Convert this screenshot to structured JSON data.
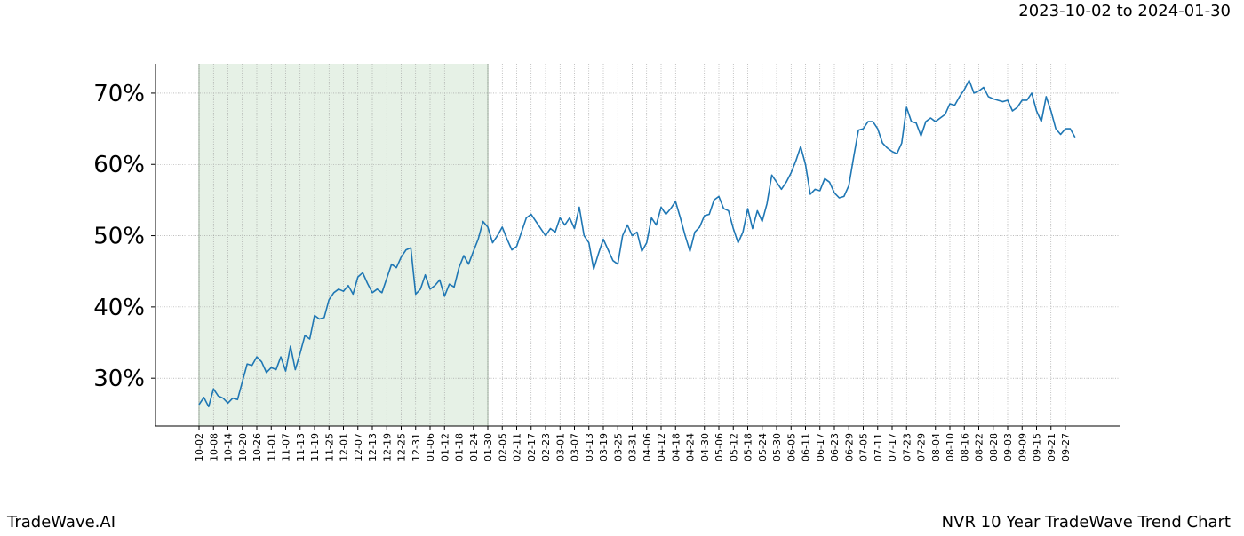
{
  "header": {
    "date_range": "2023-10-02 to 2024-01-30"
  },
  "footer": {
    "brand": "TradeWave.AI",
    "chart_name": "NVR 10 Year TradeWave Trend Chart"
  },
  "chart_data": {
    "type": "line",
    "categories": [
      "10-02",
      null,
      null,
      "10-08",
      null,
      null,
      "10-14",
      null,
      null,
      "10-20",
      null,
      null,
      "10-26",
      null,
      null,
      "11-01",
      null,
      null,
      "11-07",
      null,
      null,
      "11-13",
      null,
      null,
      "11-19",
      null,
      null,
      "11-25",
      null,
      null,
      "12-01",
      null,
      null,
      "12-07",
      null,
      null,
      "12-13",
      null,
      null,
      "12-19",
      null,
      null,
      "12-25",
      null,
      null,
      "12-31",
      null,
      null,
      "01-06",
      null,
      null,
      "01-12",
      null,
      null,
      "01-18",
      null,
      null,
      "01-24",
      null,
      null,
      "01-30",
      null,
      null,
      "02-05",
      null,
      null,
      "02-11",
      null,
      null,
      "02-17",
      null,
      null,
      "02-23",
      null,
      null,
      "03-01",
      null,
      null,
      "03-07",
      null,
      null,
      "03-13",
      null,
      null,
      "03-19",
      null,
      null,
      "03-25",
      null,
      null,
      "03-31",
      null,
      null,
      "04-06",
      null,
      null,
      "04-12",
      null,
      null,
      "04-18",
      null,
      null,
      "04-24",
      null,
      null,
      "04-30",
      null,
      null,
      "05-06",
      null,
      null,
      "05-12",
      null,
      null,
      "05-18",
      null,
      null,
      "05-24",
      null,
      null,
      "05-30",
      null,
      null,
      "06-05",
      null,
      null,
      "06-11",
      null,
      null,
      "06-17",
      null,
      null,
      "06-23",
      null,
      null,
      "06-29",
      null,
      null,
      "07-05",
      null,
      null,
      "07-11",
      null,
      null,
      "07-17",
      null,
      null,
      "07-23",
      null,
      null,
      "07-29",
      null,
      null,
      "08-04",
      null,
      null,
      "08-10",
      null,
      null,
      "08-16",
      null,
      null,
      "08-22",
      null,
      null,
      "08-28",
      null,
      null,
      "09-03",
      null,
      null,
      "09-09",
      null,
      null,
      "09-15",
      null,
      null,
      "09-21",
      null,
      null,
      "09-27",
      null,
      null
    ],
    "series": [
      {
        "color": "#1f77b4",
        "values": [
          26.3,
          27.3,
          26,
          28.5,
          27.5,
          27.2,
          26.5,
          27.2,
          27,
          29.5,
          32,
          31.8,
          33,
          32.3,
          30.8,
          31.5,
          31.2,
          33,
          31,
          34.5,
          31.2,
          33.5,
          36,
          35.5,
          38.8,
          38.3,
          38.5,
          41,
          42,
          42.5,
          42.2,
          43,
          41.8,
          44.2,
          44.8,
          43.3,
          42,
          42.5,
          42,
          44,
          46,
          45.5,
          47,
          48,
          48.3,
          41.8,
          42.5,
          44.5,
          42.5,
          43,
          43.8,
          41.5,
          43.2,
          42.8,
          45.5,
          47.2,
          46,
          47.8,
          49.5,
          52,
          51.2,
          49,
          50,
          51.2,
          49.5,
          48,
          48.5,
          50.5,
          52.5,
          53,
          52,
          51,
          50,
          51,
          50.5,
          52.5,
          51.5,
          52.5,
          51,
          54,
          50,
          49,
          45.3,
          47.5,
          49.5,
          48,
          46.5,
          46,
          50,
          51.5,
          50,
          50.5,
          47.8,
          49,
          52.5,
          51.5,
          54,
          53,
          53.8,
          54.8,
          52.5,
          50,
          47.8,
          50.5,
          51.2,
          52.8,
          53,
          55,
          55.5,
          53.8,
          53.5,
          51,
          49,
          50.5,
          53.8,
          51,
          53.5,
          52,
          54.5,
          58.5,
          57.5,
          56.5,
          57.5,
          58.8,
          60.5,
          62.5,
          60,
          55.8,
          56.5,
          56.3,
          58,
          57.5,
          56,
          55.3,
          55.5,
          57,
          61,
          64.8,
          65,
          66,
          66,
          65,
          63,
          62.3,
          61.8,
          61.5,
          63,
          68,
          66,
          65.8,
          64,
          66,
          66.5,
          66,
          66.5,
          67,
          68.5,
          68.3,
          69.5,
          70.5,
          71.8,
          70,
          70.3,
          70.8,
          69.5,
          69.2,
          69,
          68.8,
          69,
          67.5,
          68,
          69,
          69,
          70,
          67.5,
          66,
          69.5,
          67.5,
          65,
          64.2,
          65,
          65,
          63.8
        ]
      }
    ],
    "ylim": [
      23.3,
      74.1
    ],
    "yticks": [
      {
        "value": 30,
        "label": "30%"
      },
      {
        "value": 40,
        "label": "40%"
      },
      {
        "value": 50,
        "label": "50%"
      },
      {
        "value": 60,
        "label": "60%"
      },
      {
        "value": 70,
        "label": "70%"
      }
    ],
    "shaded_range": [
      "10-02",
      "01-30"
    ],
    "shade_color": "#e6f1e6",
    "grid": true
  }
}
